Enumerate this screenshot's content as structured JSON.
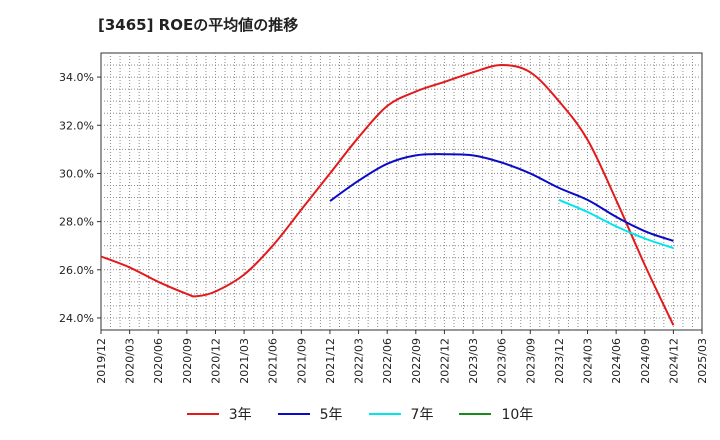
{
  "chart_data": {
    "type": "line",
    "title": "[3465]  ROEの平均値の推移",
    "xlabel": "",
    "ylabel": "",
    "ylim": [
      23.5,
      35.0
    ],
    "yticks": [
      24.0,
      26.0,
      28.0,
      30.0,
      32.0,
      34.0
    ],
    "ytick_labels": [
      "24.0%",
      "26.0%",
      "28.0%",
      "30.0%",
      "32.0%",
      "34.0%"
    ],
    "x_ticks": [
      "2019/12",
      "2020/03",
      "2020/06",
      "2020/09",
      "2020/12",
      "2021/03",
      "2021/06",
      "2021/09",
      "2021/12",
      "2022/03",
      "2022/06",
      "2022/09",
      "2022/12",
      "2023/03",
      "2023/06",
      "2023/09",
      "2023/12",
      "2024/03",
      "2024/06",
      "2024/09",
      "2024/12",
      "2025/03"
    ],
    "grid": true,
    "legend_position": "bottom",
    "series": [
      {
        "name": "3年",
        "color": "#e31a1c",
        "x": [
          "2019/12",
          "2020/03",
          "2020/06",
          "2020/09",
          "2020/10",
          "2020/12",
          "2021/03",
          "2021/06",
          "2021/09",
          "2021/12",
          "2022/03",
          "2022/06",
          "2022/09",
          "2022/12",
          "2023/03",
          "2023/06",
          "2023/09",
          "2023/12",
          "2024/03",
          "2024/06",
          "2024/09",
          "2024/12"
        ],
        "values": [
          26.55,
          26.1,
          25.5,
          25.0,
          24.9,
          25.1,
          25.8,
          27.0,
          28.5,
          30.0,
          31.5,
          32.8,
          33.4,
          33.8,
          34.2,
          34.5,
          34.2,
          33.0,
          31.4,
          28.9,
          26.2,
          23.7
        ]
      },
      {
        "name": "5年",
        "color": "#0a0ac8",
        "x": [
          "2021/12",
          "2022/03",
          "2022/06",
          "2022/09",
          "2022/12",
          "2023/03",
          "2023/06",
          "2023/09",
          "2023/12",
          "2024/03",
          "2024/06",
          "2024/09",
          "2024/12"
        ],
        "values": [
          28.85,
          29.7,
          30.4,
          30.75,
          30.8,
          30.75,
          30.45,
          30.0,
          29.4,
          28.9,
          28.2,
          27.6,
          27.2
        ]
      },
      {
        "name": "7年",
        "color": "#00e5ee",
        "x": [
          "2023/12",
          "2024/03",
          "2024/06",
          "2024/09",
          "2024/12"
        ],
        "values": [
          28.9,
          28.4,
          27.8,
          27.3,
          26.9
        ]
      },
      {
        "name": "10年",
        "color": "#1a8a1a",
        "x": [],
        "values": []
      }
    ]
  }
}
